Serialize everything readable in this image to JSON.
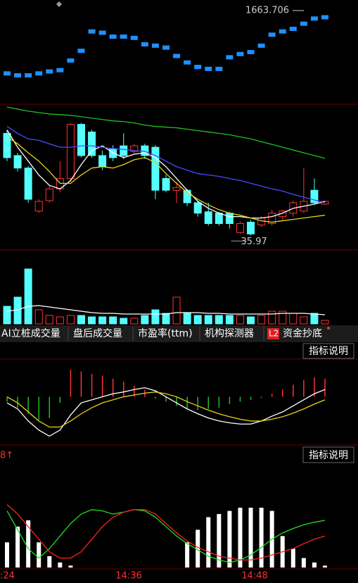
{
  "chart_data": [
    {
      "type": "candlestick",
      "color": "#1e90ff",
      "ylim": [
        0,
        120
      ],
      "values": [
        15,
        12,
        12,
        15,
        18,
        20,
        35,
        50,
        80,
        78,
        72,
        72,
        70,
        60,
        58,
        55,
        42,
        32,
        25,
        22,
        22,
        40,
        45,
        48,
        58,
        75,
        80,
        84,
        92,
        100,
        102
      ],
      "annotation": "1663.706"
    },
    {
      "type": "candlestick",
      "ylim": [
        0,
        205
      ],
      "up_color": "#ff3232",
      "down_color": "#54ffff",
      "open": [
        165,
        133,
        115,
        53,
        68,
        85,
        100,
        178,
        167,
        133,
        143,
        147,
        139,
        147,
        145,
        100,
        83,
        83,
        65,
        52,
        50,
        50,
        22,
        37,
        33,
        35,
        45,
        50,
        53,
        83,
        63
      ],
      "close": [
        130,
        115,
        70,
        67,
        85,
        100,
        178,
        133,
        133,
        117,
        130,
        133,
        147,
        133,
        83,
        83,
        87,
        65,
        50,
        35,
        35,
        35,
        35,
        20,
        43,
        50,
        53,
        65,
        67,
        65,
        67
      ],
      "high": [
        170,
        137,
        118,
        70,
        90,
        125,
        180,
        180,
        170,
        140,
        148,
        165,
        150,
        150,
        148,
        105,
        95,
        85,
        68,
        65,
        52,
        52,
        38,
        40,
        46,
        55,
        55,
        68,
        115,
        100,
        68
      ],
      "low": [
        125,
        110,
        65,
        50,
        65,
        80,
        95,
        130,
        130,
        112,
        125,
        128,
        136,
        128,
        70,
        80,
        65,
        60,
        45,
        32,
        32,
        28,
        20,
        18,
        30,
        32,
        40,
        45,
        50,
        62,
        62
      ],
      "lines": [
        {
          "color": "#ffffff",
          "values": [
            170,
            145,
            125,
            105,
            90,
            85,
            97,
            120,
            140,
            147,
            137,
            130,
            135,
            137,
            130,
            117,
            100,
            83,
            67,
            57,
            50,
            45,
            45,
            43,
            43,
            45,
            50,
            57,
            60,
            63,
            67
          ]
        },
        {
          "color": "#e8d21a",
          "values": [
            160,
            150,
            137,
            125,
            110,
            93,
            93,
            105,
            115,
            117,
            115,
            120,
            127,
            130,
            123,
            107,
            93,
            80,
            70,
            62,
            55,
            50,
            47,
            43,
            39,
            37,
            39,
            41,
            43,
            45,
            47
          ]
        },
        {
          "color": "#4a4aff",
          "values": [
            175,
            165,
            157,
            155,
            150,
            145,
            145,
            147,
            147,
            145,
            143,
            142,
            140,
            139,
            133,
            125,
            117,
            112,
            107,
            105,
            103,
            100,
            97,
            93,
            89,
            85,
            82,
            77,
            73,
            69,
            65
          ]
        },
        {
          "color": "#1fbf1f",
          "values": [
            203,
            200,
            197,
            195,
            193,
            192,
            191,
            189,
            187,
            185,
            183,
            182,
            180,
            177,
            175,
            174,
            173,
            171,
            169,
            167,
            165,
            163,
            160,
            157,
            153,
            149,
            145,
            141,
            137,
            133,
            129
          ]
        }
      ],
      "annotation": "35.97"
    },
    {
      "type": "bar",
      "ylim": [
        0,
        85
      ],
      "up_color": "#ff3232",
      "down_color": "#54ffff",
      "values": [
        25,
        38,
        78,
        20,
        12,
        10,
        12,
        12,
        10,
        10,
        10,
        8,
        8,
        12,
        20,
        15,
        38,
        15,
        12,
        12,
        12,
        12,
        12,
        10,
        12,
        18,
        18,
        15,
        10,
        15,
        5
      ],
      "lines": [
        {
          "color": "#ffffff",
          "values": [
            18,
            20,
            25,
            26,
            24,
            22,
            20,
            18,
            16,
            15,
            15,
            14,
            14,
            14,
            14,
            14,
            16,
            16,
            16,
            15,
            15,
            14,
            14,
            14,
            14,
            14,
            15,
            15,
            15,
            14,
            13
          ]
        }
      ]
    },
    {
      "type": "bar",
      "ylim": [
        -75,
        60
      ],
      "up_color": "#ff3232",
      "down_color": "#1fbf1f",
      "values": [
        -8,
        -18,
        -28,
        -38,
        -35,
        -10,
        45,
        42,
        38,
        35,
        30,
        25,
        18,
        12,
        -3,
        -8,
        -15,
        -20,
        -22,
        -20,
        -18,
        -12,
        -8,
        -5,
        -2,
        5,
        12,
        20,
        28,
        32,
        30
      ],
      "lines": [
        {
          "color": "#ffffff",
          "values": [
            -10,
            -20,
            -40,
            -55,
            -65,
            -55,
            -30,
            -10,
            -5,
            0,
            5,
            8,
            12,
            15,
            10,
            0,
            -10,
            -20,
            -28,
            -35,
            -40,
            -43,
            -45,
            -45,
            -40,
            -32,
            -25,
            -15,
            -5,
            5,
            12
          ]
        },
        {
          "color": "#e8d21a",
          "values": [
            0,
            -10,
            -25,
            -40,
            -50,
            -50,
            -40,
            -28,
            -18,
            -10,
            -5,
            0,
            3,
            6,
            8,
            5,
            0,
            -8,
            -15,
            -22,
            -28,
            -33,
            -37,
            -40,
            -40,
            -37,
            -33,
            -27,
            -20,
            -12,
            -5
          ]
        }
      ]
    },
    {
      "type": "bar",
      "ylim": [
        0,
        150
      ],
      "color": "#ffffff",
      "values": [
        40,
        65,
        75,
        40,
        18,
        8,
        3,
        0,
        0,
        0,
        0,
        0,
        0,
        0,
        0,
        0,
        0,
        40,
        60,
        80,
        85,
        90,
        95,
        95,
        95,
        90,
        50,
        30,
        15,
        8,
        3
      ],
      "lines": [
        {
          "color": "#1fdf1f",
          "values": [
            90,
            60,
            30,
            15,
            30,
            50,
            70,
            85,
            92,
            90,
            85,
            88,
            92,
            90,
            80,
            65,
            50,
            38,
            28,
            18,
            12,
            8,
            12,
            20,
            32,
            45,
            55,
            62,
            68,
            72,
            75
          ]
        },
        {
          "color": "#ff2020",
          "values": [
            100,
            85,
            65,
            45,
            25,
            15,
            15,
            25,
            45,
            65,
            80,
            88,
            92,
            92,
            85,
            70,
            55,
            42,
            32,
            25,
            18,
            15,
            12,
            12,
            15,
            20,
            25,
            30,
            38,
            45,
            50
          ]
        }
      ]
    }
  ],
  "ui": {
    "tabs": [
      "AI立桩成交量",
      "盘后成交量",
      "市盈率(ttm)",
      "机构探测器"
    ],
    "l2_badge": "L2",
    "l2_tab": "资金抄底",
    "explain_buttons": [
      "指标说明",
      "指标说明"
    ],
    "indicator_value": "8↑",
    "time_axis": [
      ":24",
      "14:36",
      "14:48"
    ]
  }
}
